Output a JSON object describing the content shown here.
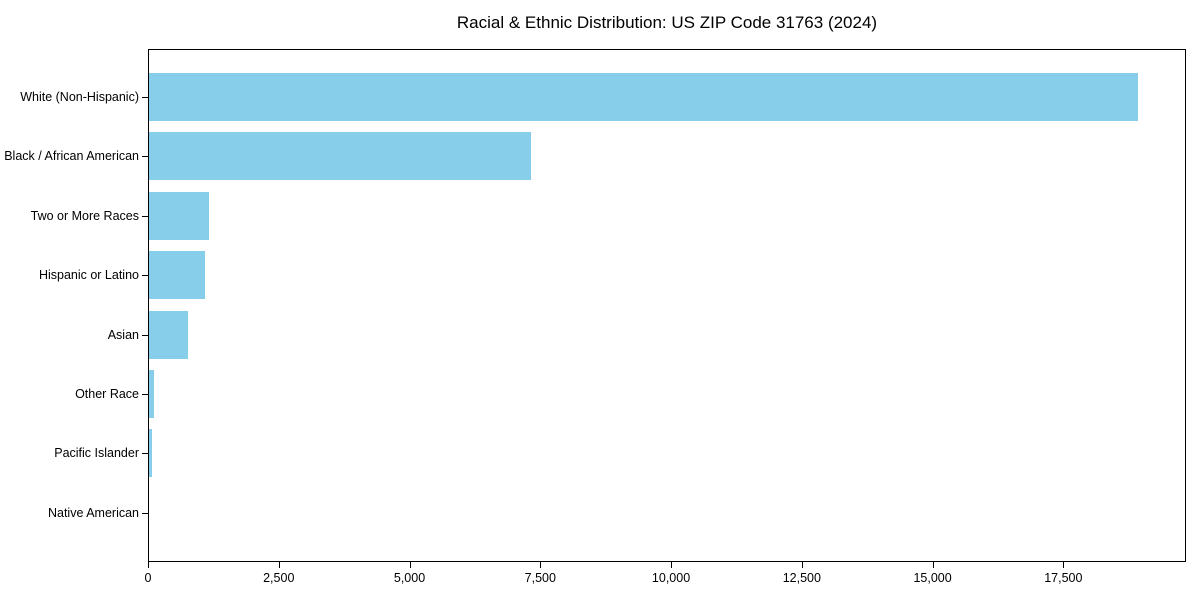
{
  "figure": {
    "kind": "matplotlib-style static chart"
  },
  "chart_data": {
    "type": "bar",
    "orientation": "horizontal",
    "title": "Racial & Ethnic Distribution: US ZIP Code 31763 (2024)",
    "categories": [
      "White (Non-Hispanic)",
      "Black / African American",
      "Two or More Races",
      "Hispanic or Latino",
      "Asian",
      "Other Race",
      "Pacific Islander",
      "Native American"
    ],
    "values": [
      18900,
      7310,
      1150,
      1080,
      750,
      100,
      60,
      0
    ],
    "xlabel": "",
    "ylabel": "",
    "xlim": [
      0,
      19845
    ],
    "x_ticks": [
      0,
      2500,
      5000,
      7500,
      10000,
      12500,
      15000,
      17500
    ],
    "x_tick_labels": [
      "0",
      "2,500",
      "5,000",
      "7,500",
      "10,000",
      "12,500",
      "15,000",
      "17,500"
    ],
    "grid": false,
    "legend_position": "none",
    "bar_color": "#87ceeb",
    "axis_color": "#000000",
    "text_color": "#000000",
    "background_color": "#ffffff"
  }
}
